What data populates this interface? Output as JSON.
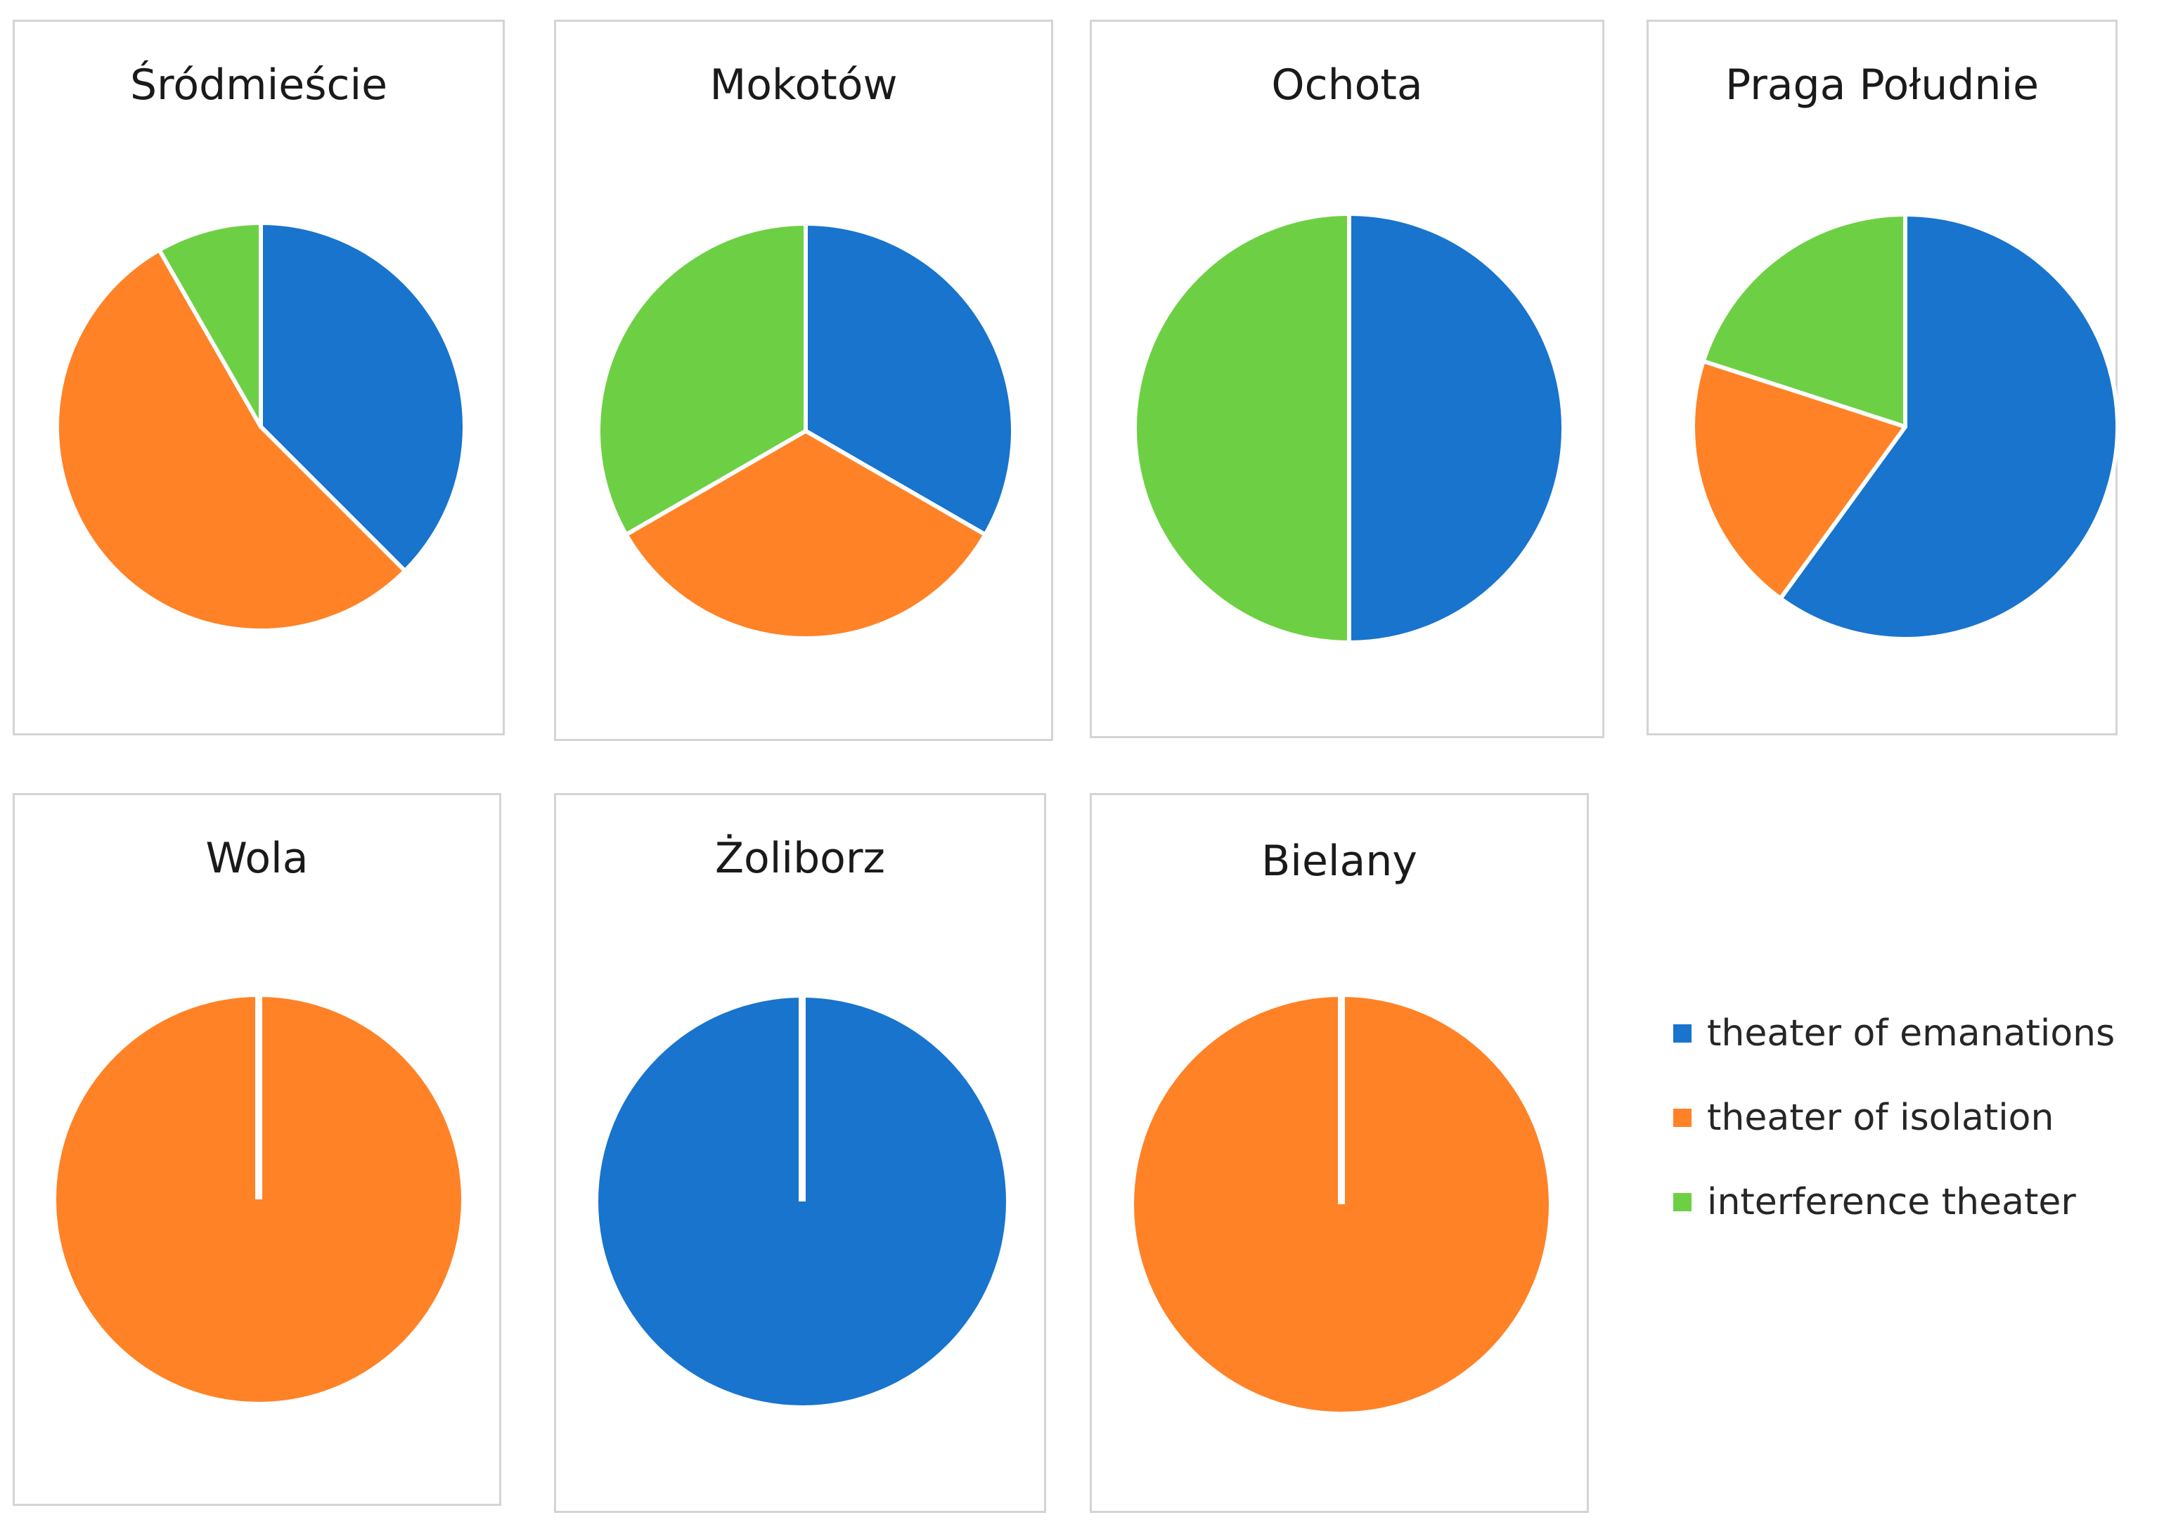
{
  "chart_data": [
    {
      "type": "pie",
      "title": "Śródmieście",
      "categories": [
        "theater of emanations",
        "theater of isolation",
        "interference theater"
      ],
      "values": [
        37.5,
        54.2,
        8.3
      ]
    },
    {
      "type": "pie",
      "title": "Mokotów",
      "categories": [
        "theater of emanations",
        "theater of isolation",
        "interference theater"
      ],
      "values": [
        33.3,
        33.3,
        33.3
      ]
    },
    {
      "type": "pie",
      "title": "Ochota",
      "categories": [
        "theater of emanations",
        "theater of isolation",
        "interference theater"
      ],
      "values": [
        50,
        0,
        50
      ]
    },
    {
      "type": "pie",
      "title": "Praga Południe",
      "categories": [
        "theater of emanations",
        "theater of isolation",
        "interference theater"
      ],
      "values": [
        60,
        20,
        20
      ]
    },
    {
      "type": "pie",
      "title": "Wola",
      "categories": [
        "theater of emanations",
        "theater of isolation",
        "interference theater"
      ],
      "values": [
        0,
        100,
        0
      ]
    },
    {
      "type": "pie",
      "title": "Żoliborz",
      "categories": [
        "theater of emanations",
        "theater of isolation",
        "interference theater"
      ],
      "values": [
        100,
        0,
        0
      ]
    },
    {
      "type": "pie",
      "title": "Bielany",
      "categories": [
        "theater of emanations",
        "theater of isolation",
        "interference theater"
      ],
      "values": [
        0,
        100,
        0
      ]
    }
  ],
  "legend": {
    "position": "right",
    "items": [
      {
        "label": "theater of emanations",
        "color": "#1874CD"
      },
      {
        "label": "theater of isolation",
        "color": "#FF8227"
      },
      {
        "label": "interference theater",
        "color": "#6DD044"
      }
    ]
  }
}
